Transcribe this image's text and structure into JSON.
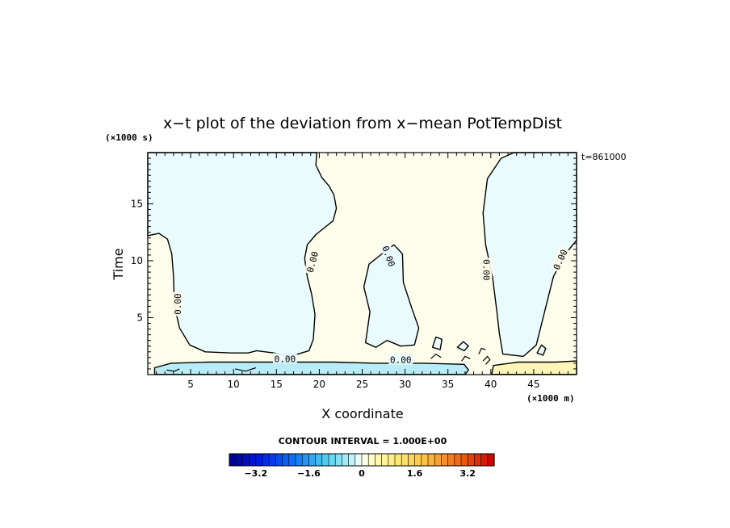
{
  "chart_data": {
    "type": "heatmap",
    "title": "x−t plot of the deviation from x−mean PotTempDist",
    "xlabel": "X coordinate",
    "ylabel": "Time",
    "x_unit": "(×1000 m)",
    "y_unit": "(×1000 s)",
    "time_stamp": "t=861000",
    "xlim": [
      0,
      50
    ],
    "ylim": [
      0,
      19.5
    ],
    "x_ticks": [
      5,
      10,
      15,
      20,
      25,
      30,
      35,
      40,
      45
    ],
    "y_ticks": [
      5,
      10,
      15
    ],
    "x_tick_labels": [
      "5",
      "10",
      "15",
      "20",
      "25",
      "30",
      "35",
      "40",
      "45"
    ],
    "y_tick_labels": [
      "5",
      "10",
      "15"
    ],
    "contour_interval": "CONTOUR INTERVAL = 1.000E+00",
    "contour_labels": [
      "0.00",
      "0.00",
      "0.00",
      "0.00",
      "0.00",
      "0.00",
      "0.00"
    ],
    "colorbar": {
      "min": -4,
      "max": 4,
      "step": 0.2,
      "tick_values": [
        -3.2,
        -1.6,
        0,
        1.6,
        3.2
      ],
      "tick_labels": [
        "−3.2",
        "−1.6",
        "0",
        "1.6",
        "3.2"
      ]
    },
    "regions": [
      {
        "sign": "negative",
        "approx_x_range": [
          0,
          20
        ],
        "approx_t_range": [
          2,
          19.5
        ]
      },
      {
        "sign": "negative",
        "approx_x_range": [
          25.5,
          31
        ],
        "approx_t_range": [
          2,
          11
        ]
      },
      {
        "sign": "negative",
        "approx_x_range": [
          39,
          50
        ],
        "approx_t_range": [
          1.5,
          19.5
        ]
      },
      {
        "sign": "negative",
        "approx_x_range": [
          0.8,
          37
        ],
        "approx_t_range": [
          0,
          1.2
        ]
      },
      {
        "sign": "positive",
        "approx_x_range": [
          19,
          40
        ],
        "approx_t_range": [
          1,
          19.5
        ]
      },
      {
        "sign": "positive",
        "approx_x_range": [
          40,
          50
        ],
        "approx_t_range": [
          0,
          1.2
        ]
      }
    ],
    "colors": {
      "negative_fill": "#eafbfd",
      "positive_fill": "#fefdec",
      "near_surface_negative": "#b9ecf6",
      "near_surface_positive": "#fdf6b8"
    }
  }
}
